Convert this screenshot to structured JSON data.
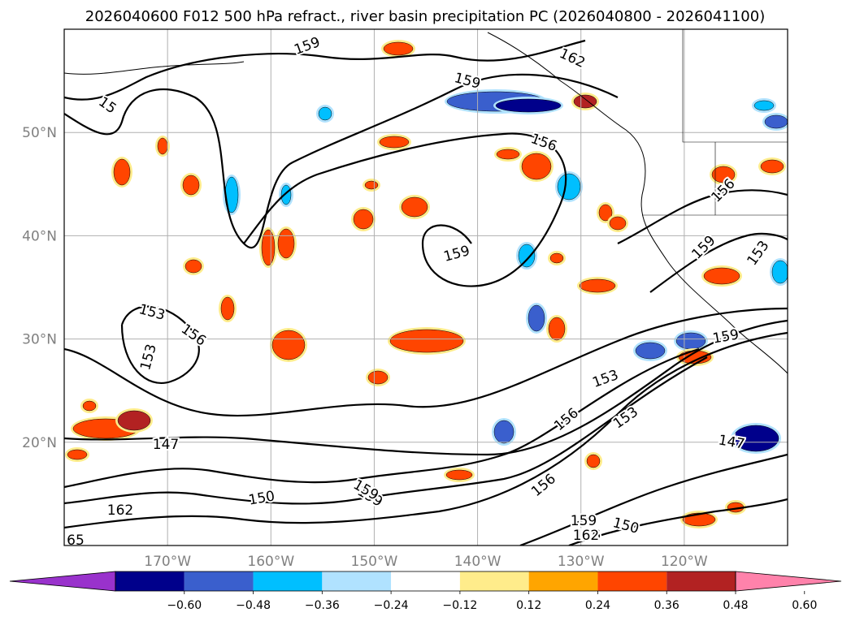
{
  "chart_data": {
    "type": "contour-map",
    "title": "2026040600 F012 500 hPa refract., river basin precipitation PC (2026040800 - 2026041100)",
    "lat_labels": [
      "50°N",
      "40°N",
      "30°N",
      "20°N"
    ],
    "lon_labels": [
      "170°W",
      "160°W",
      "150°W",
      "140°W",
      "130°W",
      "120°W"
    ],
    "lat_range": [
      10,
      60
    ],
    "lon_range": [
      -180,
      -110
    ],
    "grid": true,
    "contour_labels": [
      {
        "text": "159"
      },
      {
        "text": "162"
      },
      {
        "text": "159"
      },
      {
        "text": "15"
      },
      {
        "text": "156"
      },
      {
        "text": "156"
      },
      {
        "text": "159"
      },
      {
        "text": "153"
      },
      {
        "text": "159"
      },
      {
        "text": "153"
      },
      {
        "text": "156"
      },
      {
        "text": "153"
      },
      {
        "text": "159"
      },
      {
        "text": "159"
      },
      {
        "text": "147"
      },
      {
        "text": "153"
      },
      {
        "text": "156"
      },
      {
        "text": "153"
      },
      {
        "text": "156"
      },
      {
        "text": "147"
      },
      {
        "text": "162"
      },
      {
        "text": "150"
      },
      {
        "text": "159"
      },
      {
        "text": "65"
      },
      {
        "text": "156"
      },
      {
        "text": "150"
      },
      {
        "text": "162"
      },
      {
        "text": "159"
      }
    ],
    "colorbar": {
      "levels": [
        -0.6,
        -0.48,
        -0.36,
        -0.24,
        -0.12,
        0.12,
        0.24,
        0.36,
        0.48,
        0.6
      ],
      "tick_labels": [
        "−0.60",
        "−0.48",
        "−0.36",
        "−0.24",
        "−0.12",
        "0.12",
        "0.24",
        "0.36",
        "0.48",
        "0.60"
      ],
      "colors": [
        "#9932CC",
        "#00008B",
        "#3A5FCD",
        "#00BFFF",
        "#B0E2FF",
        "#FFFFFF",
        "#FFEC8B",
        "#FFA500",
        "#FF4500",
        "#B22222",
        "#FF82AB"
      ]
    }
  }
}
